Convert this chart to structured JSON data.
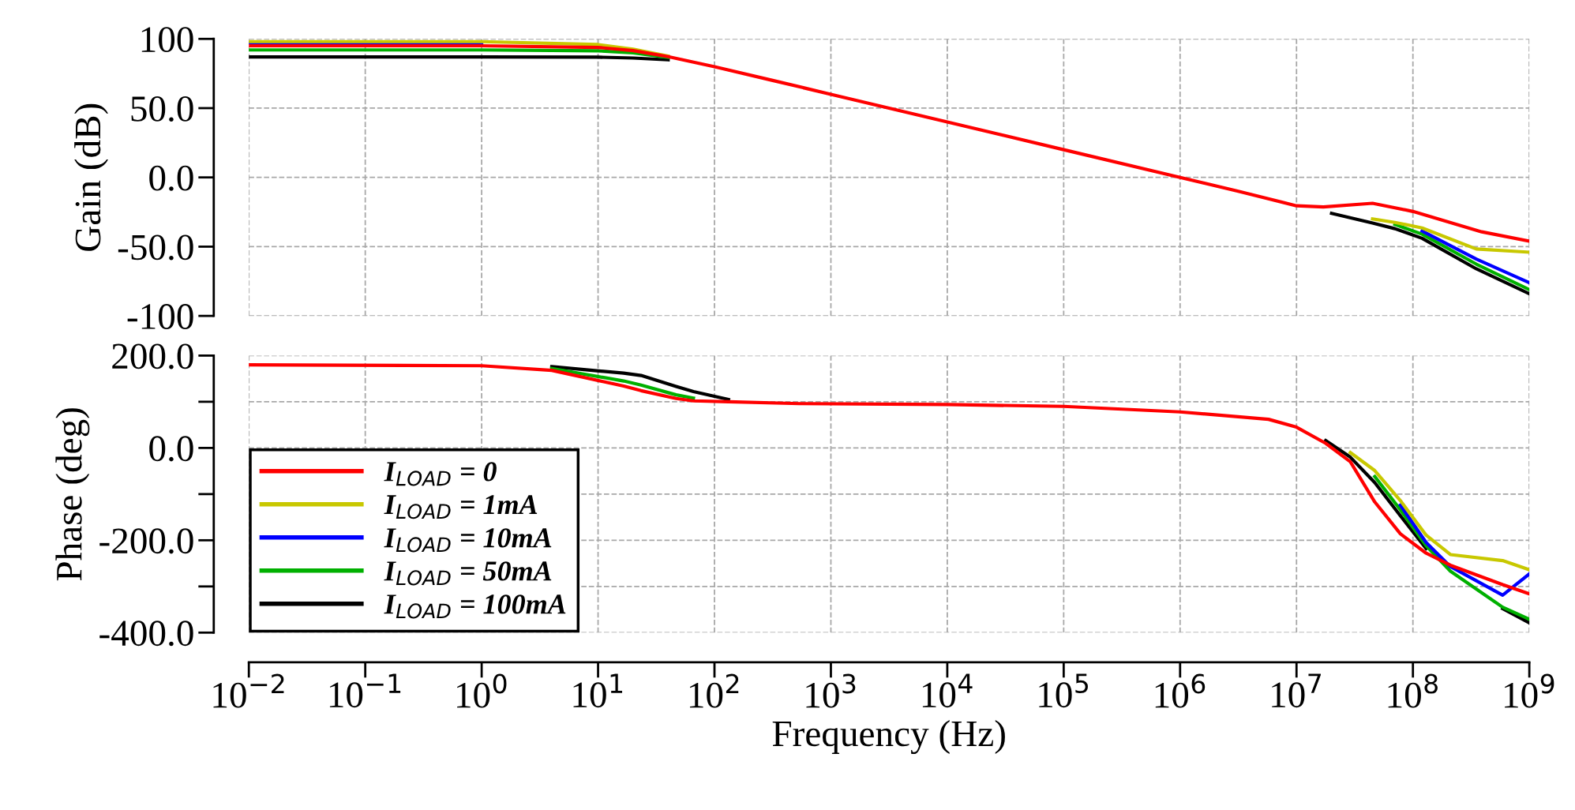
{
  "chart_data": [
    {
      "type": "line",
      "ylabel": "Gain (dB)",
      "log": "x",
      "grid": true,
      "legend": false,
      "tick_labels": "y",
      "line_style": "solid",
      "marker": "none",
      "xlim": [
        0.01,
        1000000000
      ],
      "xticks": [
        0.01,
        0.1,
        1,
        10,
        100,
        1000,
        10000,
        100000,
        1000000,
        10000000,
        100000000,
        1000000000
      ],
      "ylim": [
        -100,
        100
      ],
      "yticks": [
        100,
        {
          "value": 50,
          "label": "50.0"
        },
        {
          "value": 0,
          "label": "0.0"
        },
        {
          "value": -50,
          "label": "-50.0"
        },
        -100
      ],
      "x": [
        0.01,
        1,
        10,
        20,
        40,
        100,
        316,
        1000,
        10000,
        100000,
        1000000,
        3160000,
        10000000,
        20000000,
        45000000,
        70000000,
        120000000,
        350000000,
        1000000000
      ],
      "series": [
        {
          "color": "#ff0000",
          "x": [
            0.01,
            1,
            10,
            20,
            40,
            100,
            316,
            1000,
            10000,
            100000,
            1000000,
            3160000,
            10000000,
            17000000,
            45000000,
            100000000,
            390000000,
            1000000000
          ],
          "values": [
            95,
            95,
            93.8,
            91.5,
            87.2,
            79.9,
            70,
            60,
            40,
            20,
            0,
            -10,
            -20.5,
            -21.3,
            -18.7,
            -24.6,
            -39.3,
            -46
          ]
        },
        {
          "color": "#c8c800",
          "values": [
            98,
            98,
            95.9,
            92.5,
            87.6,
            null,
            null,
            null,
            null,
            null,
            null,
            null,
            null,
            null,
            -30,
            -32.5,
            -36.5,
            -51.7,
            -54
          ]
        },
        {
          "color": "#0000ff",
          "values": [
            97,
            97,
            null,
            null,
            null,
            null,
            null,
            null,
            null,
            null,
            null,
            null,
            null,
            null,
            null,
            null,
            -38.7,
            -59,
            -76
          ]
        },
        {
          "color": "#00b000",
          "values": [
            92,
            92,
            91.4,
            89.9,
            86.6,
            null,
            null,
            null,
            null,
            null,
            null,
            null,
            null,
            null,
            null,
            -34,
            -41,
            -62.6,
            -81
          ]
        },
        {
          "color": "#000000",
          "values": [
            87,
            87,
            86.8,
            86.2,
            84.9,
            null,
            null,
            null,
            null,
            null,
            null,
            null,
            null,
            -26,
            -33,
            -37,
            -44,
            -66,
            -84
          ]
        }
      ]
    },
    {
      "type": "line",
      "ylabel": "Phase (deg)",
      "xlabel": "Frequency (Hz)",
      "log": "x",
      "grid": true,
      "legend": "bottom left",
      "line_style": "solid",
      "marker": "none",
      "xlim": [
        0.01,
        1000000000
      ],
      "xticks": [
        {
          "value": 0.01,
          "label": "10$^{−2}$"
        },
        {
          "value": 0.1,
          "label": "10$^{−1}$"
        },
        {
          "value": 1,
          "label": "10$^{0}$"
        },
        {
          "value": 10,
          "label": "10$^{1}$"
        },
        {
          "value": 100,
          "label": "10$^{2}$"
        },
        {
          "value": 1000,
          "label": "10$^{3}$"
        },
        {
          "value": 10000,
          "label": "10$^{4}$"
        },
        {
          "value": 100000,
          "label": "10$^{5}$"
        },
        {
          "value": 1000000,
          "label": "10$^{6}$"
        },
        {
          "value": 10000000,
          "label": "10$^{7}$"
        },
        {
          "value": 100000000,
          "label": "10$^{8}$"
        },
        {
          "value": 1000000000,
          "label": "10$^{9}$"
        }
      ],
      "ylim": [
        -400,
        200
      ],
      "yticks": [
        {
          "value": 200,
          "label": "200.0"
        },
        {
          "value": 100,
          "label": null
        },
        {
          "value": 0,
          "label": "0.0"
        },
        {
          "value": -100,
          "label": null
        },
        {
          "value": -200,
          "label": "-200.0"
        },
        {
          "value": -300,
          "label": null
        },
        {
          "value": -400,
          "label": "-400.0"
        }
      ],
      "x": [
        0.01,
        1,
        4,
        16.6,
        23.4,
        46.8,
        66,
        132,
        537,
        10000,
        100000,
        1000000,
        5750000,
        10000000,
        17800000,
        29000000,
        47000000,
        78000000,
        130000000,
        210000000,
        590000000,
        1000000000
      ],
      "series": [
        {
          "name": "I$_{LOAD}$ = 0",
          "color": "#ff0000",
          "values": [
            180,
            178,
            168,
            134,
            124,
            107,
            102,
            100,
            96,
            94,
            90,
            78,
            62,
            45,
            10,
            -30,
            -117,
            -186,
            -228,
            -254,
            -296,
            -316
          ]
        },
        {
          "name": "I$_{LOAD}$ = 1mA",
          "color": "#c8c800",
          "values": [
            null,
            null,
            null,
            null,
            null,
            null,
            null,
            null,
            null,
            null,
            null,
            null,
            null,
            null,
            null,
            -10,
            -49,
            -114,
            -189,
            -231,
            -244,
            -264
          ]
        },
        {
          "name": "I$_{LOAD}$ = 10mA",
          "color": "#0000ff",
          "values": [
            null,
            null,
            null,
            null,
            null,
            null,
            null,
            null,
            null,
            null,
            null,
            null,
            null,
            null,
            null,
            null,
            null,
            -124,
            -205,
            -257,
            -319,
            -273
          ]
        },
        {
          "name": "I$_{LOAD}$ = 50mA",
          "color": "#00b000",
          "values": [
            null,
            null,
            172,
            145,
            136,
            115,
            108,
            null,
            null,
            null,
            null,
            null,
            null,
            null,
            null,
            null,
            -62,
            -134,
            -212,
            -267,
            -345,
            -371
          ]
        },
        {
          "name": "I$_{LOAD}$ = 100mA",
          "color": "#000000",
          "values": [
            null,
            null,
            176,
            162,
            157,
            133,
            122,
            105,
            null,
            null,
            null,
            null,
            null,
            null,
            16,
            -20,
            -75,
            -147,
            -218,
            null,
            -348,
            -379
          ]
        }
      ]
    }
  ]
}
